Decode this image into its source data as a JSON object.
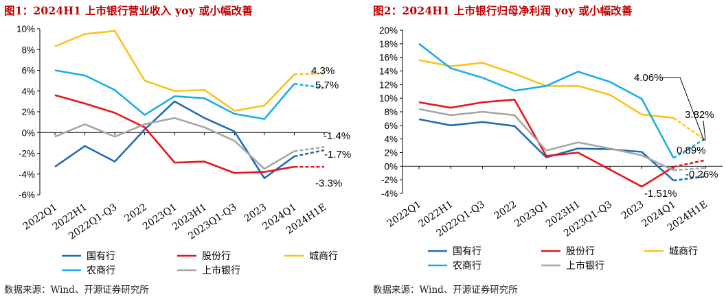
{
  "source_text": "数据来源：Wind、开源证券研究所",
  "colors": {
    "国有行": "#1f6cb5",
    "股份行": "#e8141b",
    "城商行": "#fcc11c",
    "农商行": "#1aaee8",
    "上市银行": "#a6a6a6"
  },
  "chart_data": [
    {
      "type": "line",
      "title": "图1：2024H1 上市银行营业收入 yoy 或小幅改善",
      "categories": [
        "2022Q1",
        "2022H1",
        "2022Q1-Q3",
        "2022",
        "2023Q1",
        "2023H1",
        "2023Q1-Q3",
        "2023",
        "2024Q1",
        "2024H1E"
      ],
      "ylim": [
        -6,
        10
      ],
      "ytick_step": 2,
      "ytick_suffix": "%",
      "estimate_from_index": 8,
      "series": [
        {
          "name": "国有行",
          "values": [
            -3.3,
            -1.3,
            -2.8,
            0.3,
            3.0,
            1.4,
            0.1,
            -4.4,
            -2.3,
            -1.7
          ]
        },
        {
          "name": "股份行",
          "values": [
            3.6,
            2.8,
            1.9,
            0.5,
            -2.9,
            -2.8,
            -3.9,
            -3.8,
            -3.3,
            -3.3
          ]
        },
        {
          "name": "城商行",
          "values": [
            8.3,
            9.5,
            9.8,
            5.0,
            4.0,
            4.1,
            2.1,
            2.6,
            5.6,
            5.7
          ]
        },
        {
          "name": "农商行",
          "values": [
            6.0,
            5.5,
            4.1,
            1.7,
            3.5,
            3.3,
            1.8,
            1.3,
            4.7,
            4.3
          ]
        },
        {
          "name": "上市银行",
          "values": [
            -0.4,
            0.8,
            -0.4,
            0.8,
            1.4,
            0.5,
            -0.8,
            -3.5,
            -1.8,
            -1.4
          ]
        }
      ],
      "annotations": [
        "4.3%",
        "5.7%",
        "-1.4%",
        "-1.7%",
        "-3.3%"
      ],
      "legend": [
        "国有行",
        "股份行",
        "城商行",
        "农商行",
        "上市银行"
      ]
    },
    {
      "type": "line",
      "title": "图2：2024H1 上市银行归母净利润 yoy 或小幅改善",
      "categories": [
        "2022Q1",
        "2022H1",
        "2022Q1-Q3",
        "2022",
        "2023Q1",
        "2023H1",
        "2023Q1-Q3",
        "2023",
        "2024Q1",
        "2024H1E"
      ],
      "ylim": [
        -4,
        20
      ],
      "ytick_step": 2,
      "ytick_suffix": "%",
      "estimate_from_index": 8,
      "series": [
        {
          "name": "国有行",
          "values": [
            6.9,
            6.0,
            6.5,
            5.9,
            1.3,
            2.6,
            2.5,
            2.1,
            -2.1,
            -1.51
          ]
        },
        {
          "name": "股份行",
          "values": [
            9.4,
            8.6,
            9.4,
            9.8,
            1.5,
            2.0,
            -0.5,
            -3.0,
            -0.1,
            0.89
          ]
        },
        {
          "name": "城商行",
          "values": [
            15.6,
            14.7,
            15.2,
            13.6,
            11.8,
            11.8,
            10.5,
            7.6,
            7.1,
            3.82
          ]
        },
        {
          "name": "农商行",
          "values": [
            18.0,
            14.4,
            13.0,
            11.1,
            11.8,
            13.9,
            12.4,
            9.9,
            1.2,
            4.06
          ]
        },
        {
          "name": "上市银行",
          "values": [
            8.4,
            7.5,
            8.0,
            7.5,
            2.3,
            3.5,
            2.6,
            1.6,
            -0.6,
            -0.26
          ]
        }
      ],
      "annotations": [
        "4.06%",
        "3.82%",
        "0.89%",
        "-0.26%",
        "-1.51%"
      ],
      "legend": [
        "国有行",
        "股份行",
        "城商行",
        "农商行",
        "上市银行"
      ]
    }
  ]
}
